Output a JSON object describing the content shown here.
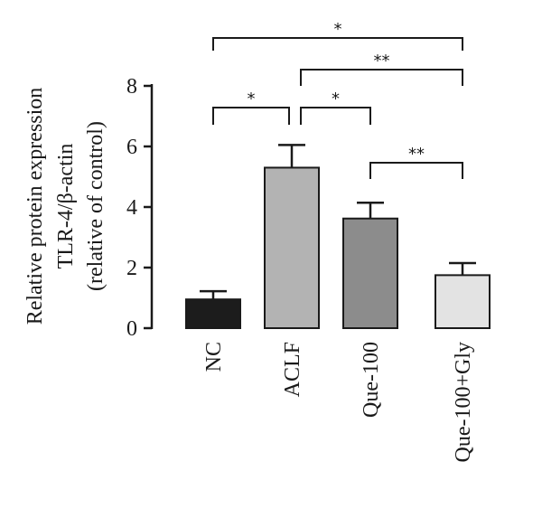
{
  "chart_data": {
    "type": "bar",
    "ylabel_lines": [
      "Relative protein expression",
      "TLR-4/β-actin",
      "(relative of control)"
    ],
    "categories": [
      "NC",
      "ACLF",
      "Que-100",
      "Que-100+Gly"
    ],
    "values": [
      0.95,
      5.3,
      3.62,
      1.75
    ],
    "errors": [
      0.27,
      0.75,
      0.52,
      0.4
    ],
    "colors": [
      "#1c1c1c",
      "#b3b3b3",
      "#8c8c8c",
      "#e3e3e3"
    ],
    "ylim": [
      0,
      8
    ],
    "yticks": [
      "0",
      "2",
      "4",
      "6",
      "8"
    ],
    "significance": [
      {
        "from": "NC",
        "to": "Que-100+Gly",
        "label": "*"
      },
      {
        "from": "ACLF",
        "to": "Que-100+Gly",
        "label": "**"
      },
      {
        "from": "NC",
        "to": "ACLF",
        "label": "*"
      },
      {
        "from": "ACLF",
        "to": "Que-100",
        "label": "*"
      },
      {
        "from": "Que-100",
        "to": "Que-100+Gly",
        "label": "**"
      }
    ]
  }
}
